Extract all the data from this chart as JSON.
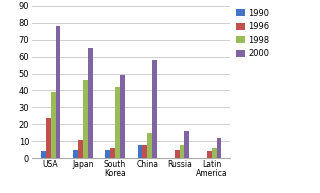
{
  "categories": [
    "USA",
    "Japan",
    "South\nKorea",
    "China",
    "Russia",
    "Latin\nAmerica"
  ],
  "series": {
    "1990": [
      4,
      5,
      5,
      8,
      0,
      0
    ],
    "1996": [
      24,
      11,
      6,
      8,
      5,
      4
    ],
    "1998": [
      39,
      46,
      42,
      15,
      8,
      6
    ],
    "2000": [
      78,
      65,
      49,
      58,
      16,
      12
    ]
  },
  "colors": {
    "1990": "#4472C4",
    "1996": "#C0504D",
    "1998": "#9BBB59",
    "2000": "#8064A2"
  },
  "ylim": [
    0,
    90
  ],
  "yticks": [
    0,
    10,
    20,
    30,
    40,
    50,
    60,
    70,
    80,
    90
  ],
  "legend_labels": [
    "1990",
    "1996",
    "1998",
    "2000"
  ],
  "bg_color": "#FFFFFF",
  "grid_color": "#C8C8C8",
  "figsize": [
    3.2,
    1.93
  ],
  "dpi": 100
}
